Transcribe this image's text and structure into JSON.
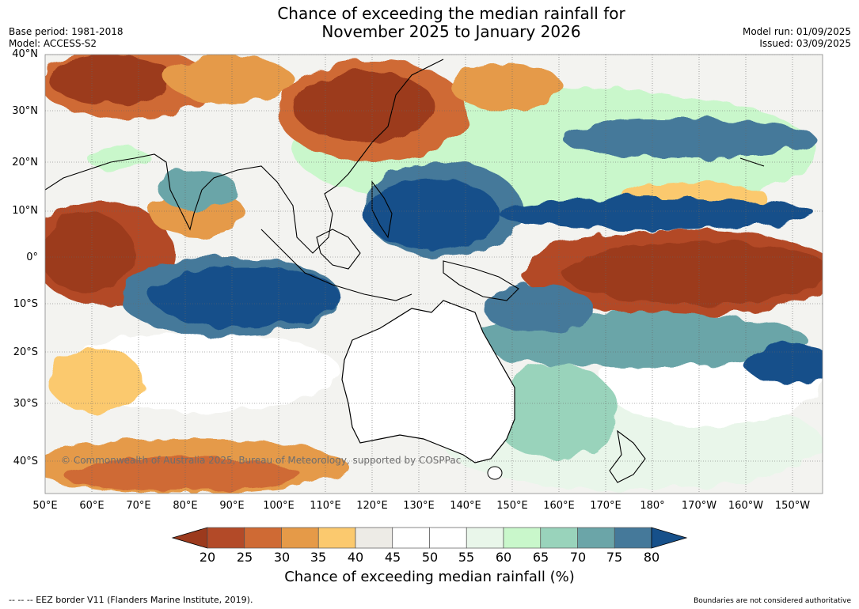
{
  "title": {
    "line1": "Chance of exceeding the median rainfall for",
    "line2": "November 2025 to January 2026"
  },
  "meta_left": {
    "base_period": "Base period: 1981-2018",
    "model": "Model: ACCESS-S2"
  },
  "meta_right": {
    "model_run": "Model run: 01/09/2025",
    "issued": "Issued: 03/09/2025"
  },
  "map": {
    "lat_labels": [
      "40°N",
      "30°N",
      "20°N",
      "10°N",
      "0°",
      "10°S",
      "20°S",
      "30°S",
      "40°S"
    ],
    "lon_labels": [
      "50°E",
      "60°E",
      "70°E",
      "80°E",
      "90°E",
      "100°E",
      "110°E",
      "120°E",
      "130°E",
      "140°E",
      "150°E",
      "160°E",
      "170°E",
      "180°",
      "170°W",
      "160°W",
      "150°W"
    ],
    "copyright": "© Commonwealth of Australia 2025, Bureau of Meteorology, supported by COSPPac"
  },
  "colorbar": {
    "ticks": [
      "20",
      "25",
      "30",
      "35",
      "40",
      "45",
      "50",
      "55",
      "60",
      "65",
      "70",
      "75",
      "80"
    ],
    "colors": [
      "#9c3a1d",
      "#b34a28",
      "#cf6a34",
      "#e59a48",
      "#fbc96e",
      "#edebe6",
      "#ffffff",
      "#ffffff",
      "#e9f6ea",
      "#c9f7cb",
      "#99d3bb",
      "#6ba5a8",
      "#45799a",
      "#16508a"
    ],
    "label": "Chance of exceeding median rainfall (%)"
  },
  "footer": {
    "eez": "--  --  -- EEZ border V11 (Flanders Marine Institute, 2019).",
    "disclaimer": "Boundaries are not considered authoritative"
  }
}
